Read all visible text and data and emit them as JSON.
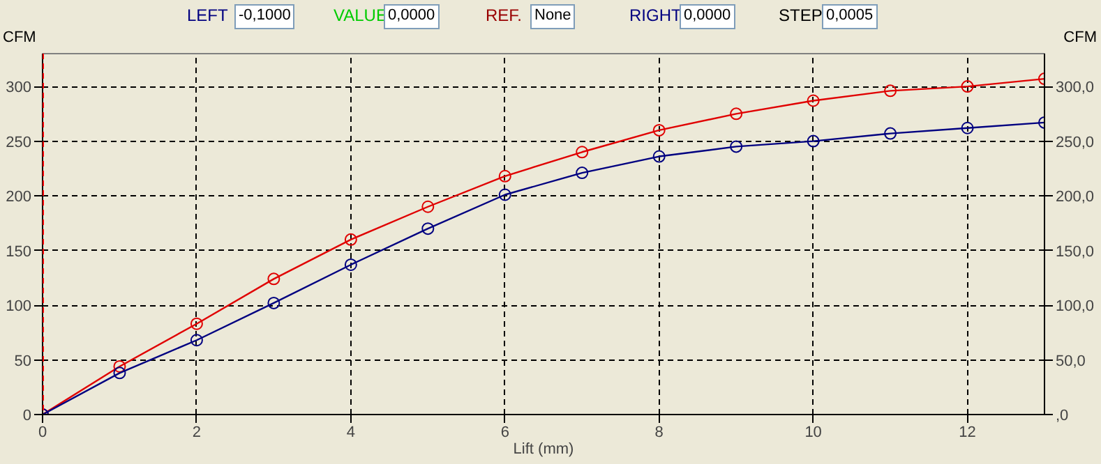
{
  "chart_data": {
    "type": "line",
    "xlabel": "Lift (mm)",
    "ylabel": "CFM",
    "y2label": "CFM",
    "x": [
      0,
      1,
      2,
      3,
      4,
      5,
      6,
      7,
      8,
      9,
      10,
      11,
      12,
      13
    ],
    "series": [
      {
        "color": "#e00000",
        "values": [
          0,
          44,
          83,
          124,
          160,
          190,
          218,
          240,
          260,
          275,
          287,
          296,
          300,
          307
        ]
      },
      {
        "color": "#000080",
        "values": [
          0,
          38,
          68,
          102,
          137,
          170,
          201,
          221,
          236,
          245,
          250,
          257,
          262,
          267
        ]
      }
    ],
    "xlim": [
      0,
      13
    ],
    "ylim": [
      0,
      330
    ],
    "y2lim": [
      0,
      330
    ],
    "xticks": [
      0,
      2,
      4,
      6,
      8,
      10,
      12
    ],
    "yticks": [
      0,
      50,
      100,
      150,
      200,
      250,
      300
    ],
    "y2ticks": [
      {
        "value": 0,
        "label": ",0"
      },
      {
        "value": 50,
        "label": "50,0"
      },
      {
        "value": 100,
        "label": "100,0"
      },
      {
        "value": 150,
        "label": "150,0"
      },
      {
        "value": 200,
        "label": "200,0"
      },
      {
        "value": 250,
        "label": "250,0"
      },
      {
        "value": 300,
        "label": "300,0"
      }
    ],
    "ref_lines": [
      {
        "axis": "x",
        "value": 0,
        "color": "#ff0000",
        "line_style": "dashed"
      }
    ],
    "annotations": [
      "LEFT",
      "-0,1000",
      "VALUE",
      "0,0000",
      "REF.",
      "None",
      "RIGHT",
      "0,0000",
      "STEP",
      "0,0005"
    ],
    "grid": true,
    "marker": "circle",
    "line_style": "solid"
  }
}
